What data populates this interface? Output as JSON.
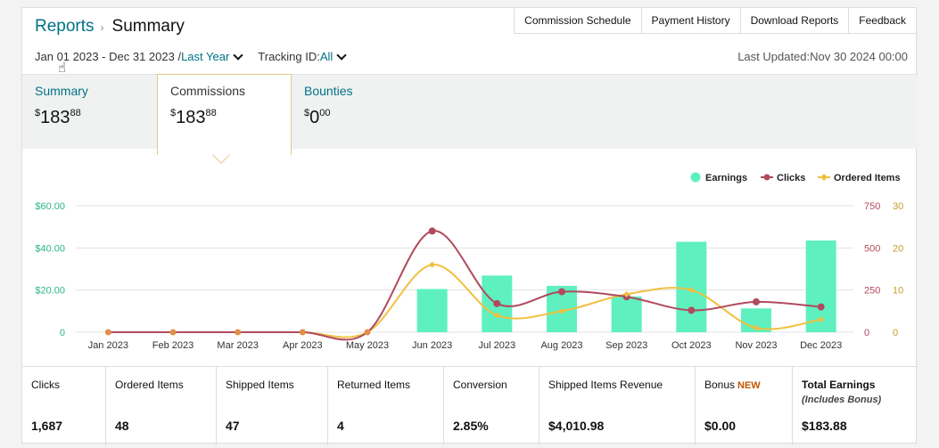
{
  "header": {
    "breadcrumb_root": "Reports",
    "breadcrumb_separator": "›",
    "page_title": "Summary",
    "links": [
      "Commission Schedule",
      "Payment History",
      "Download Reports",
      "Feedback"
    ]
  },
  "filters": {
    "date_range": "Jan 01 2023 - Dec 31 2023 /",
    "period": "Last Year",
    "tracking_label": "Tracking ID:",
    "tracking_value": "All"
  },
  "last_updated": "Last Updated:Nov 30 2024 00:00",
  "tabs": [
    {
      "label": "Summary",
      "currency": "$",
      "whole": "183",
      "cents": "88",
      "active": false
    },
    {
      "label": "Commissions",
      "currency": "$",
      "whole": "183",
      "cents": "88",
      "active": true
    },
    {
      "label": "Bounties",
      "currency": "$",
      "whole": "0",
      "cents": "00",
      "active": false
    }
  ],
  "colors": {
    "earnings": "#5ff0c0",
    "clicks": "#b14a5e",
    "ordered": "#f0c040",
    "axis_earnings": "#2bb58a",
    "axis_clicks": "#b14a5e",
    "axis_ordered": "#c89b2b",
    "link": "#007185"
  },
  "chart_data": {
    "type": "bar",
    "categories": [
      "Jan 2023",
      "Feb 2023",
      "Mar 2023",
      "Apr 2023",
      "May 2023",
      "Jun 2023",
      "Jul 2023",
      "Aug 2023",
      "Sep 2023",
      "Oct 2023",
      "Nov 2023",
      "Dec 2023"
    ],
    "legend_position": "top-right",
    "grid": true,
    "series": [
      {
        "name": "Earnings",
        "type": "bar",
        "axis": "left",
        "values": [
          0,
          0,
          0,
          0,
          0,
          20.5,
          26.9,
          22.0,
          17.0,
          42.9,
          11.3,
          43.5
        ]
      },
      {
        "name": "Clicks",
        "type": "line",
        "axis": "right-1",
        "values": [
          0,
          0,
          0,
          0,
          0,
          600,
          170,
          240,
          210,
          130,
          180,
          150
        ]
      },
      {
        "name": "Ordered Items",
        "type": "line",
        "axis": "right-2",
        "values": [
          0,
          0,
          0,
          0,
          0,
          16,
          4,
          5,
          9,
          10,
          1,
          3
        ]
      }
    ],
    "left_axis": {
      "min": 0,
      "max": 60,
      "ticks": [
        "0",
        "$20.00",
        "$40.00",
        "$60.00"
      ]
    },
    "right_axis_1": {
      "min": 0,
      "max": 750,
      "ticks": [
        "0",
        "250",
        "500",
        "750"
      ]
    },
    "right_axis_2": {
      "min": 0,
      "max": 30,
      "ticks": [
        "0",
        "10",
        "20",
        "30"
      ]
    }
  },
  "stats": [
    {
      "label": "Clicks",
      "value": "1,687"
    },
    {
      "label": "Ordered Items",
      "value": "48"
    },
    {
      "label": "Shipped Items",
      "value": "47"
    },
    {
      "label": "Returned Items",
      "value": "4"
    },
    {
      "label": "Conversion",
      "value": "2.85%"
    },
    {
      "label": "Shipped Items Revenue",
      "value": "$4,010.98"
    },
    {
      "label": "Bonus",
      "badge": "NEW",
      "value": "$0.00"
    },
    {
      "label": "Total Earnings",
      "sublabel": "(Includes Bonus)",
      "value": "$183.88"
    }
  ]
}
